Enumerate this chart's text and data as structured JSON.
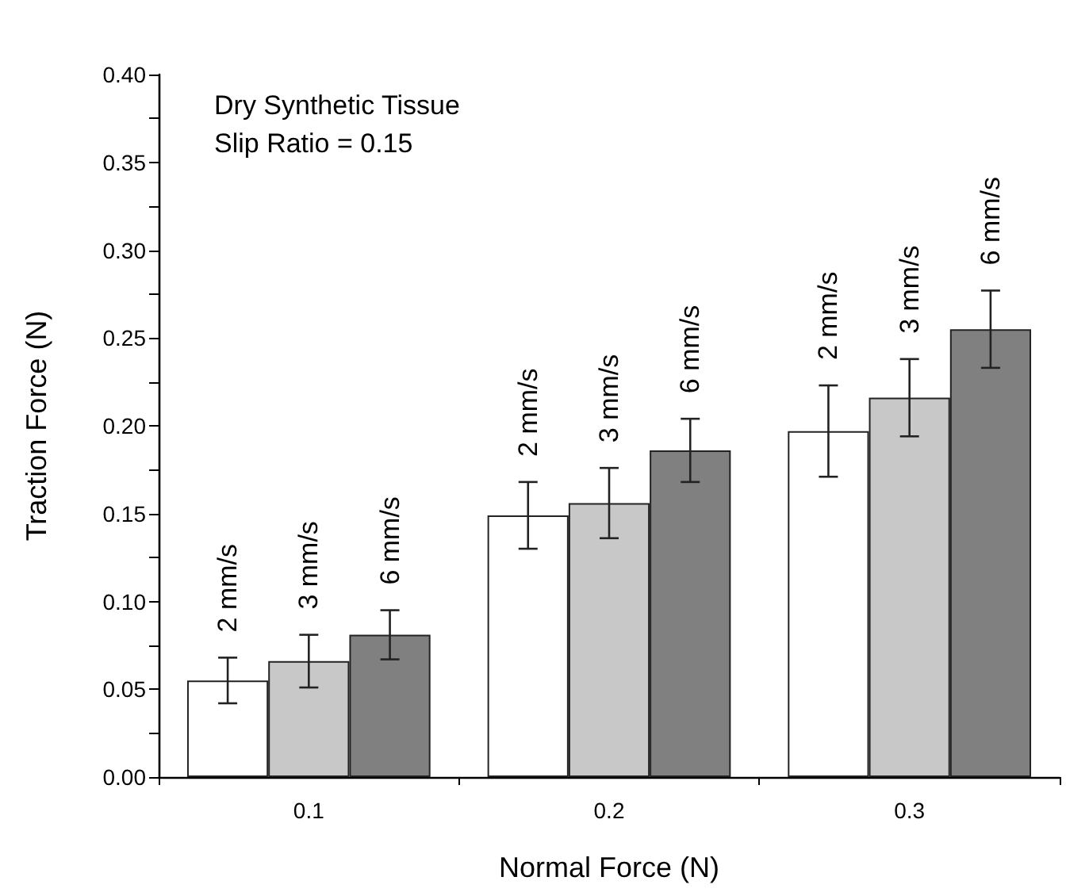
{
  "chart_data": {
    "type": "bar",
    "xlabel": "Normal Force (N)",
    "ylabel": "Traction Force (N)",
    "annotations": [
      "Dry Synthetic Tissue",
      "Slip Ratio = 0.15"
    ],
    "categories": [
      "0.1",
      "0.2",
      "0.3"
    ],
    "series": [
      {
        "name": "2 mm/s",
        "color": "#ffffff",
        "values": [
          0.055,
          0.149,
          0.197
        ],
        "errors": [
          0.013,
          0.019,
          0.026
        ]
      },
      {
        "name": "3 mm/s",
        "color": "#c8c8c8",
        "values": [
          0.066,
          0.156,
          0.216
        ],
        "errors": [
          0.015,
          0.02,
          0.022
        ]
      },
      {
        "name": "6 mm/s",
        "color": "#808080",
        "values": [
          0.081,
          0.186,
          0.255
        ],
        "errors": [
          0.014,
          0.018,
          0.022
        ]
      }
    ],
    "ylim": [
      0,
      0.4
    ],
    "yticks": [
      {
        "value": 0,
        "label": "0.00"
      },
      {
        "value": 0.05,
        "label": "0.05"
      },
      {
        "value": 0.1,
        "label": "0.10"
      },
      {
        "value": 0.15,
        "label": "0.15"
      },
      {
        "value": 0.2,
        "label": "0.20"
      },
      {
        "value": 0.25,
        "label": "0.25"
      },
      {
        "value": 0.3,
        "label": "0.30"
      },
      {
        "value": 0.35,
        "label": "0.35"
      },
      {
        "value": 0.4,
        "label": "0.40"
      }
    ],
    "grid": false,
    "legend": false
  }
}
